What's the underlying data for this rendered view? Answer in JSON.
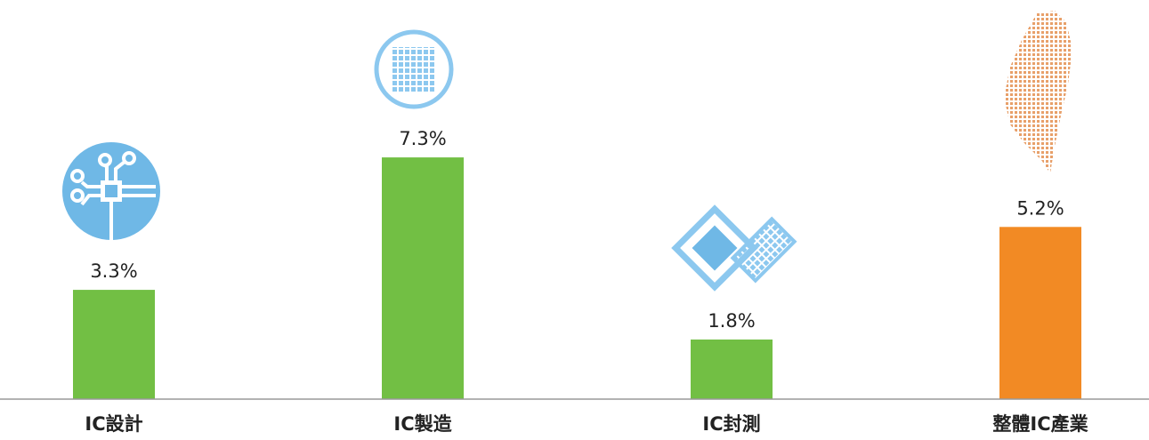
{
  "chart_data": {
    "type": "bar",
    "categories": [
      "IC設計",
      "IC製造",
      "IC封測",
      "整體IC產業"
    ],
    "values": [
      3.3,
      7.3,
      1.8,
      5.2
    ],
    "value_labels": [
      "3.3%",
      "7.3%",
      "1.8%",
      "5.2%"
    ],
    "colors": [
      "#72bf44",
      "#72bf44",
      "#72bf44",
      "#f28a24"
    ],
    "ylim": [
      0,
      12
    ]
  }
}
